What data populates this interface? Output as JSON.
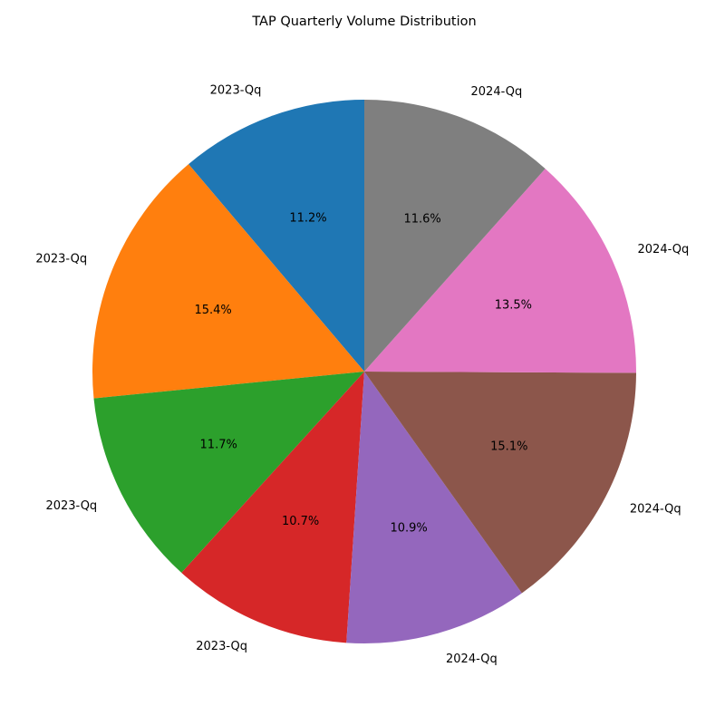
{
  "chart_data": {
    "type": "pie",
    "title": "TAP Quarterly Volume Distribution",
    "start_angle_deg": 90,
    "direction": "counterclockwise",
    "slices": [
      {
        "label": "2023-Qq",
        "value": 11.2,
        "pct_label": "11.2%",
        "color": "#1f77b4"
      },
      {
        "label": "2023-Qq",
        "value": 15.4,
        "pct_label": "15.4%",
        "color": "#ff7f0e"
      },
      {
        "label": "2023-Qq",
        "value": 11.7,
        "pct_label": "11.7%",
        "color": "#2ca02c"
      },
      {
        "label": "2023-Qq",
        "value": 10.7,
        "pct_label": "10.7%",
        "color": "#d62728"
      },
      {
        "label": "2024-Qq",
        "value": 10.9,
        "pct_label": "10.9%",
        "color": "#9467bd"
      },
      {
        "label": "2024-Qq",
        "value": 15.1,
        "pct_label": "15.1%",
        "color": "#8c564b"
      },
      {
        "label": "2024-Qq",
        "value": 13.5,
        "pct_label": "13.5%",
        "color": "#e377c2"
      },
      {
        "label": "2024-Qq",
        "value": 11.6,
        "pct_label": "11.6%",
        "color": "#7f7f7f"
      }
    ]
  }
}
